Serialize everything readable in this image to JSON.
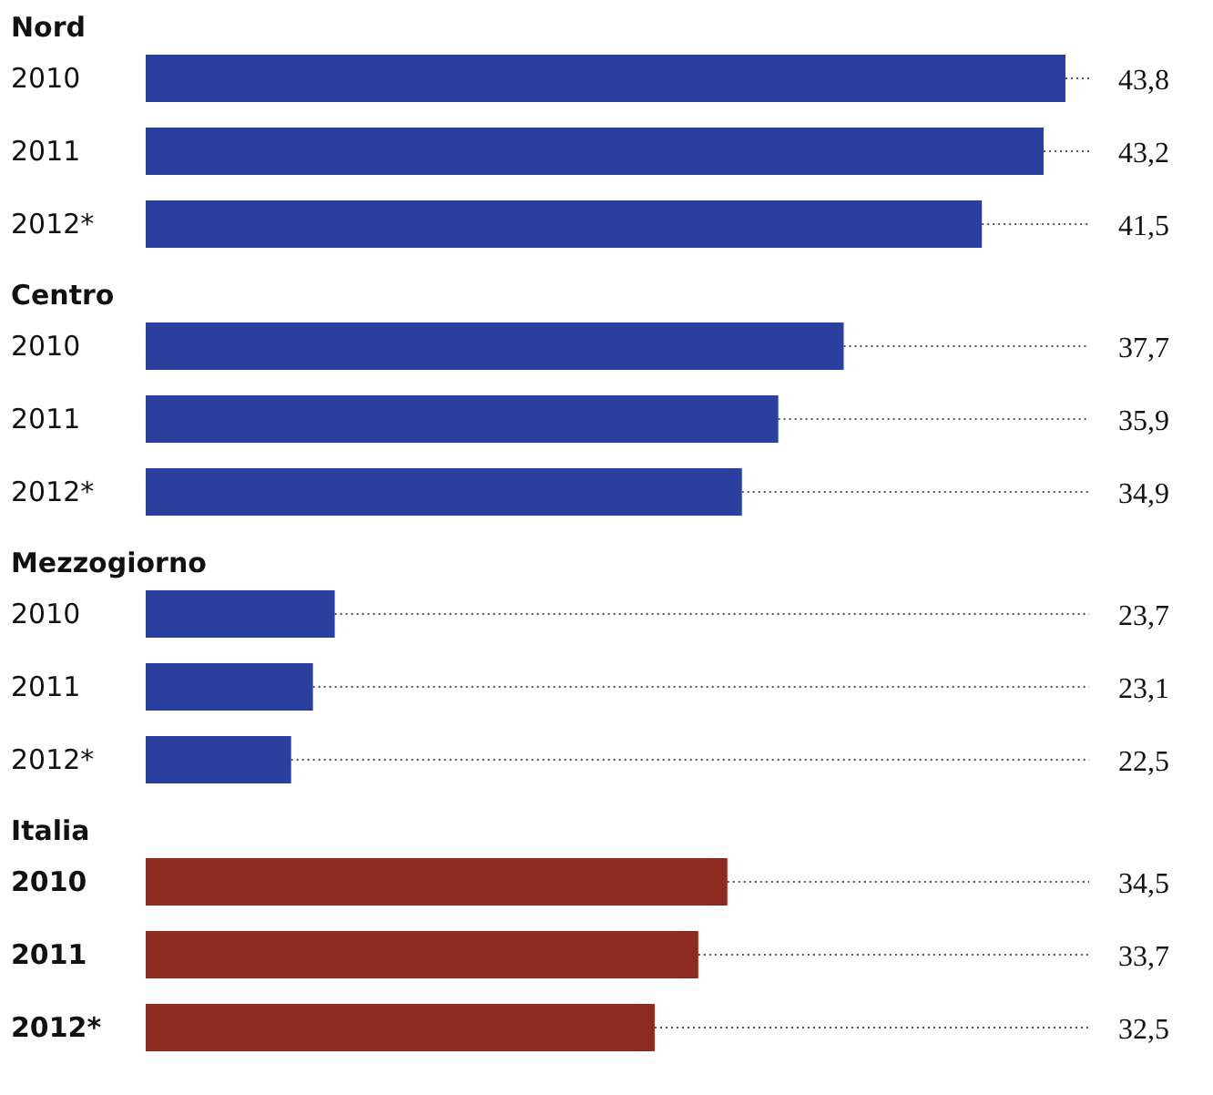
{
  "chart_data": {
    "type": "bar",
    "orientation": "horizontal",
    "categories": [
      "2010",
      "2011",
      "2012*",
      "2010",
      "2011",
      "2012*",
      "2010",
      "2011",
      "2012*",
      "2010",
      "2011",
      "2012*"
    ],
    "values": [
      43.8,
      43.2,
      41.5,
      37.7,
      35.9,
      34.9,
      23.7,
      23.1,
      22.5,
      34.5,
      33.7,
      32.5
    ],
    "value_labels": [
      "43,8",
      "43,2",
      "41,5",
      "37,7",
      "35,9",
      "34,9",
      "23,7",
      "23,1",
      "22,5",
      "34,5",
      "33,7",
      "32,5"
    ],
    "colors": [
      "#2b3f9f",
      "#2b3f9f",
      "#2b3f9f",
      "#2b3f9f",
      "#2b3f9f",
      "#2b3f9f",
      "#2b3f9f",
      "#2b3f9f",
      "#2b3f9f",
      "#8c2b22",
      "#8c2b22",
      "#8c2b22"
    ],
    "annotations": [
      "Nord",
      "Centro",
      "Mezzogiorno",
      "Italia"
    ],
    "xlim": [
      18.5,
      43.8
    ],
    "tick_labels": "y"
  }
}
